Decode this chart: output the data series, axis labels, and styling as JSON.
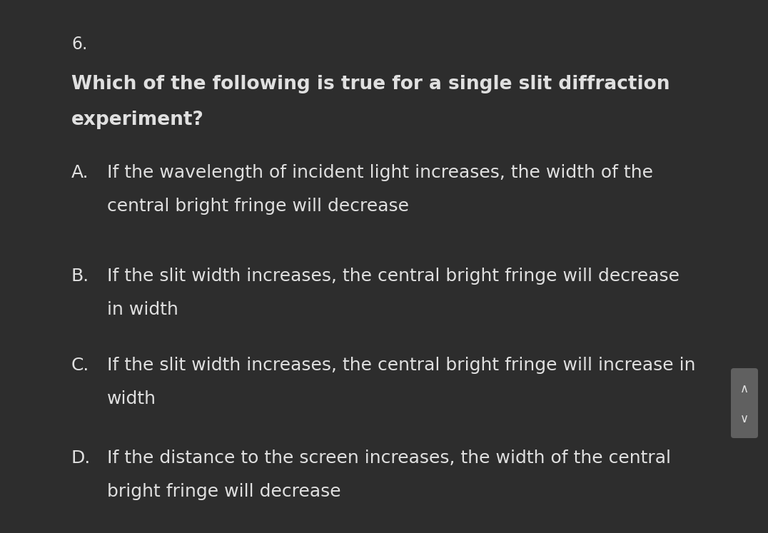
{
  "background_color": "#2d2d2d",
  "text_color": "#e0e0e0",
  "question_number": "6.",
  "question_bold_line1": "Which of the following is true for a single slit diffraction",
  "question_bold_line2": "experiment?",
  "options": [
    {
      "label": "A.",
      "line1": "If the wavelength of incident light increases, the width of the",
      "line2": "central bright fringe will decrease"
    },
    {
      "label": "B.",
      "line1": "If the slit width increases, the central bright fringe will decrease",
      "line2": "in width"
    },
    {
      "label": "C.",
      "line1": "If the slit width increases, the central bright fringe will increase in",
      "line2": "width"
    },
    {
      "label": "D.",
      "line1": "If the distance to the screen increases, the width of the central",
      "line2": "bright fringe will decrease"
    }
  ],
  "scroll_button_color": "#606060",
  "fig_width": 10.76,
  "fig_height": 7.47,
  "dpi": 100
}
